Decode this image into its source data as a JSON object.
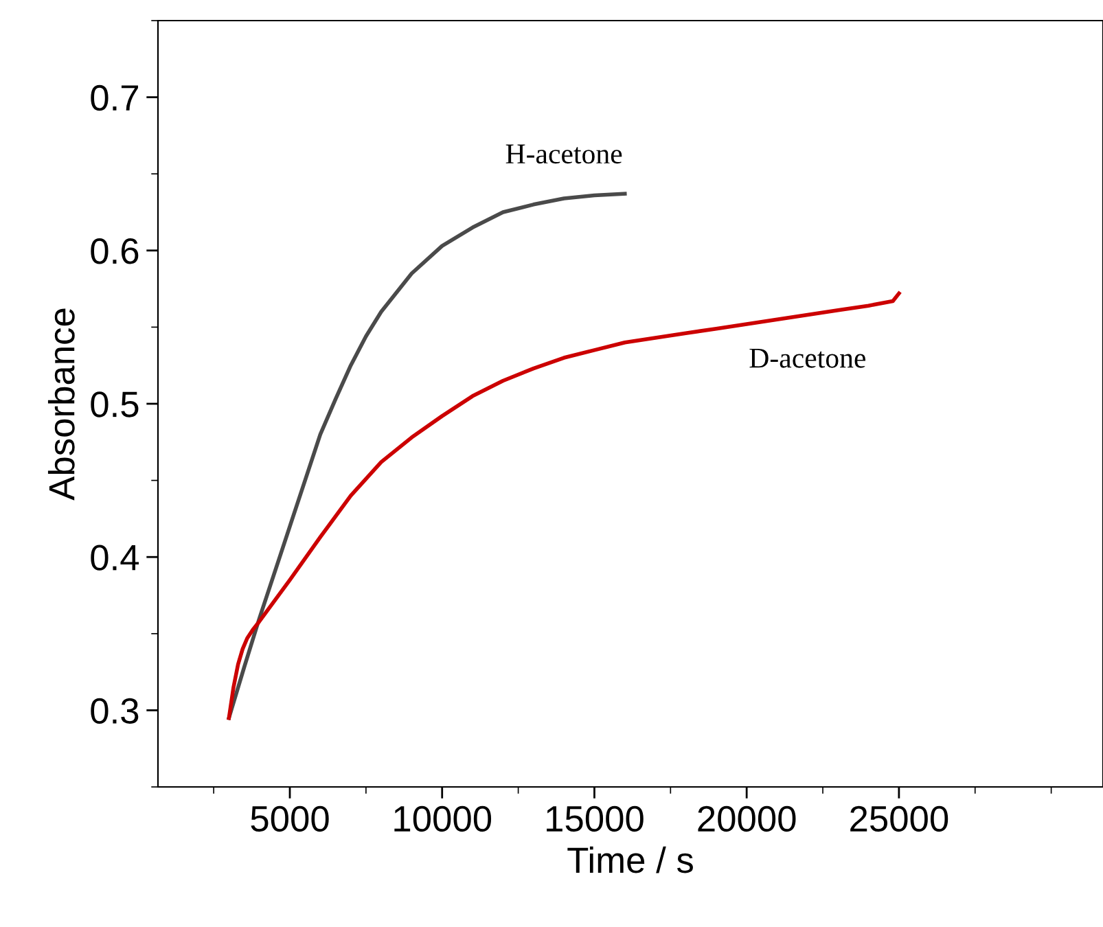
{
  "chart_data": {
    "type": "line",
    "xlabel": "Time / s",
    "ylabel": "Absorbance",
    "xlim": [
      670,
      31700
    ],
    "xticks": [
      5000,
      10000,
      15000,
      20000,
      25000
    ],
    "ylim": [
      0.25,
      0.75
    ],
    "yticks": [
      0.3,
      0.4,
      0.5,
      0.6,
      0.7
    ],
    "grid": false,
    "legend": false,
    "marker": "none",
    "line_style": "solid",
    "series": [
      {
        "x": [
          3000,
          3500,
          4000,
          4500,
          5000,
          5500,
          6000,
          6500,
          7000,
          7500,
          8000,
          9000,
          10000,
          11000,
          12000,
          13000,
          14000,
          15000,
          16000
        ],
        "name": "H-acetone",
        "values": [
          0.295,
          0.328,
          0.36,
          0.39,
          0.42,
          0.45,
          0.48,
          0.503,
          0.525,
          0.544,
          0.56,
          0.585,
          0.603,
          0.615,
          0.625,
          0.63,
          0.634,
          0.636,
          0.637
        ],
        "color": "#4a4a4a"
      },
      {
        "x": [
          3000,
          3150,
          3300,
          3450,
          3600,
          3800,
          4000,
          5000,
          6000,
          7000,
          8000,
          9000,
          10000,
          11000,
          12000,
          13000,
          14000,
          15000,
          16000,
          17000,
          18000,
          19000,
          20000,
          21000,
          22000,
          23000,
          24000,
          24800,
          25000
        ],
        "name": "D-acetone",
        "values": [
          0.295,
          0.315,
          0.33,
          0.34,
          0.347,
          0.353,
          0.358,
          0.385,
          0.413,
          0.44,
          0.462,
          0.478,
          0.492,
          0.505,
          0.515,
          0.523,
          0.53,
          0.535,
          0.54,
          0.543,
          0.546,
          0.549,
          0.552,
          0.555,
          0.558,
          0.561,
          0.564,
          0.567,
          0.572
        ],
        "color": "#cc0000"
      }
    ]
  }
}
